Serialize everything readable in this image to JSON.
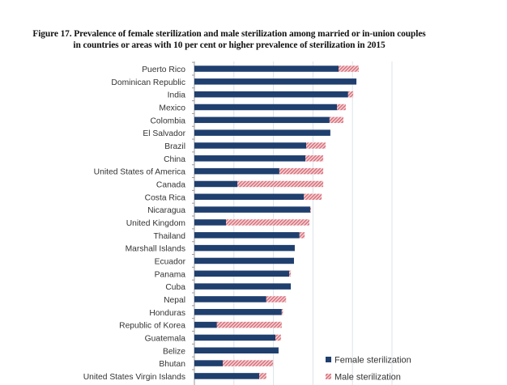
{
  "chart_data": {
    "type": "bar",
    "orientation": "horizontal",
    "stacked": true,
    "title": "Figure 17. Prevalence of female sterilization and male sterilization among married or in-union couples",
    "subtitle": "in countries or areas with 10 per cent or higher prevalence of sterilization in 2015",
    "xlabel": "",
    "ylabel": "",
    "xlim": [
      0,
      50
    ],
    "grid": true,
    "legend_position": "bottom-right",
    "categories": [
      "Puerto Rico",
      "Dominican Republic",
      "India",
      "Mexico",
      "Colombia",
      "El Salvador",
      "Brazil",
      "China",
      "United States of America",
      "Canada",
      "Costa Rica",
      "Nicaragua",
      "United Kingdom",
      "Thailand",
      "Marshall Islands",
      "Ecuador",
      "Panama",
      "Cuba",
      "Nepal",
      "Honduras",
      "Republic of Korea",
      "Guatemala",
      "Belize",
      "Bhutan",
      "United States Virgin Islands"
    ],
    "series": [
      {
        "name": "Female sterilization",
        "color": "#1f3f6e",
        "pattern": "solid",
        "values": [
          36.5,
          41.0,
          38.9,
          36.1,
          34.2,
          34.4,
          28.3,
          28.1,
          21.5,
          10.9,
          27.7,
          29.3,
          8.0,
          26.6,
          25.4,
          25.2,
          24.0,
          24.4,
          18.2,
          22.1,
          5.7,
          20.5,
          21.3,
          7.2,
          16.4
        ]
      },
      {
        "name": "Male sterilization",
        "color": "#d9727c",
        "pattern": "hatched",
        "values": [
          5.1,
          0,
          1.3,
          2.2,
          3.5,
          0,
          4.9,
          4.5,
          11.1,
          21.7,
          4.5,
          0.2,
          21.1,
          1.3,
          0,
          0,
          0.4,
          0,
          5.0,
          0.3,
          16.4,
          1.4,
          0,
          12.7,
          1.8
        ]
      }
    ]
  }
}
